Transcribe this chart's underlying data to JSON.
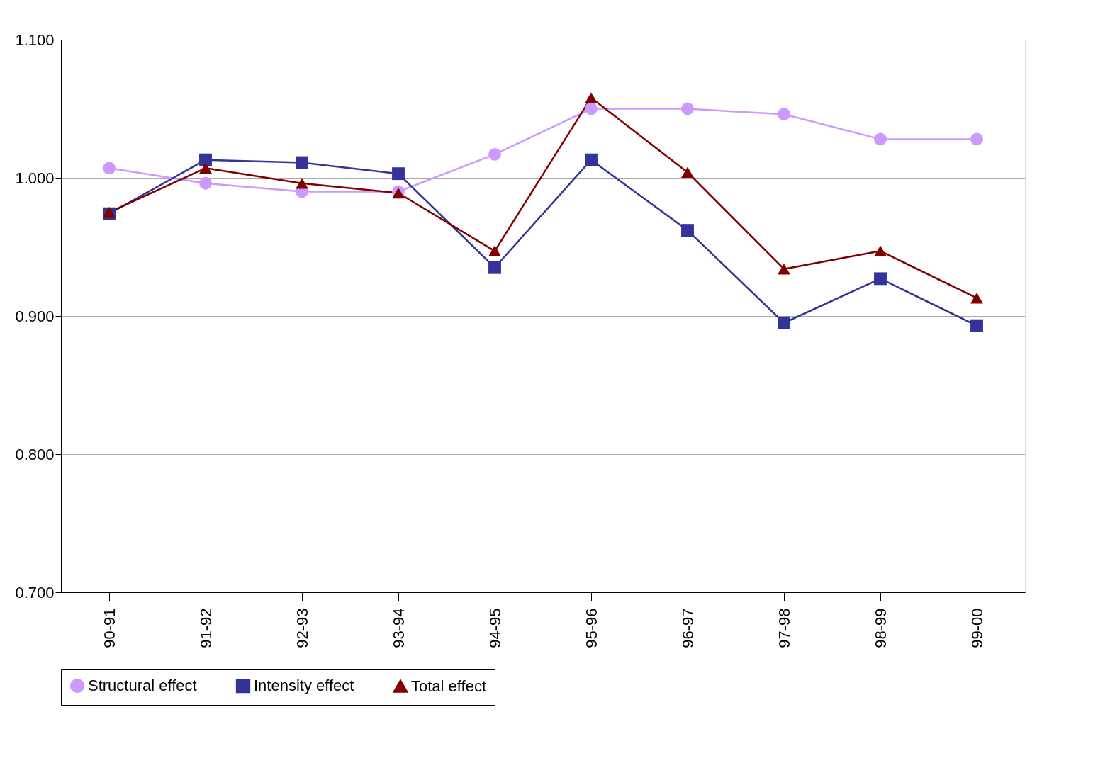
{
  "chart_data": {
    "type": "line",
    "categories": [
      "90-91",
      "91-92",
      "92-93",
      "93-94",
      "94-95",
      "95-96",
      "96-97",
      "97-98",
      "98-99",
      "99-00"
    ],
    "series": [
      {
        "name": "Structural effect",
        "color": "#cc99ff",
        "marker": "circle",
        "values": [
          1.007,
          0.996,
          0.99,
          0.99,
          1.017,
          1.05,
          1.05,
          1.046,
          1.028,
          1.028
        ]
      },
      {
        "name": "Intensity effect",
        "color": "#333399",
        "marker": "square",
        "values": [
          0.974,
          1.013,
          1.011,
          1.003,
          0.935,
          1.013,
          0.962,
          0.895,
          0.927,
          0.893
        ]
      },
      {
        "name": "Total effect",
        "color": "#800000",
        "marker": "triangle",
        "values": [
          0.975,
          1.007,
          0.996,
          0.989,
          0.947,
          1.058,
          1.004,
          0.934,
          0.947,
          0.913
        ]
      }
    ],
    "ylim": [
      0.7,
      1.1
    ],
    "yticks": [
      {
        "value": 0.7,
        "label": "0.700"
      },
      {
        "value": 0.8,
        "label": "0.800"
      },
      {
        "value": 0.9,
        "label": "0.900"
      },
      {
        "value": 1.0,
        "label": "1.000"
      },
      {
        "value": 1.1,
        "label": "1.100"
      }
    ],
    "grid": "y",
    "legend": "bottom",
    "line_style": "solid"
  }
}
